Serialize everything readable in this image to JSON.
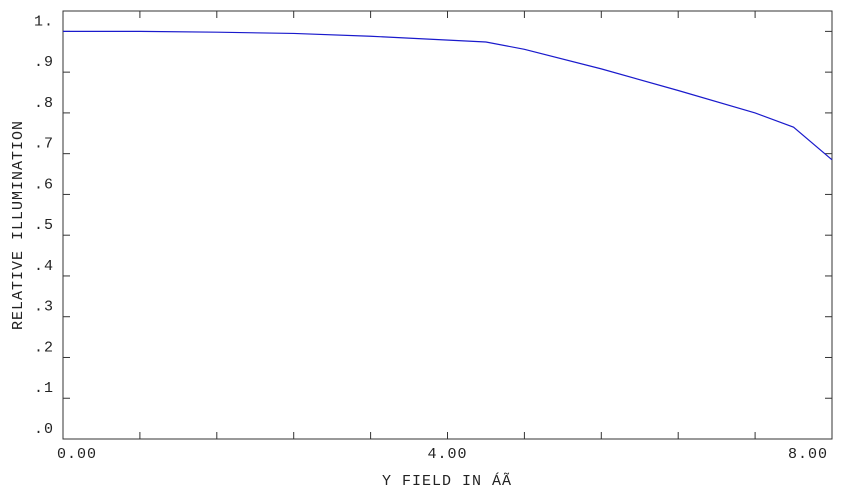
{
  "chart_data": {
    "type": "line",
    "xlabel": "Y FIELD IN  ÁÃ",
    "ylabel": "RELATIVE ILLUMINATION",
    "x": [
      0,
      0.8,
      1.6,
      2.4,
      3.2,
      4.4,
      4.8,
      5.6,
      6.4,
      7.2,
      7.6,
      8.0
    ],
    "series": [
      {
        "color": "#1a1acc",
        "values": [
          1.0,
          1.0,
          0.998,
          0.995,
          0.988,
          0.974,
          0.956,
          0.908,
          0.855,
          0.8,
          0.765,
          0.685
        ]
      }
    ],
    "xlim": [
      0,
      8
    ],
    "xticks": [
      {
        "value": 0,
        "label": "0.00"
      },
      {
        "value": 4,
        "label": "4.00"
      },
      {
        "value": 8,
        "label": "8.00"
      }
    ],
    "xminorticks": [
      0.8,
      1.6,
      2.4,
      3.2,
      4.8,
      5.6,
      6.4,
      7.2
    ],
    "ylim": [
      0,
      1.05
    ],
    "yticks": [
      {
        "value": 0,
        "label": ".0"
      },
      {
        "value": 0.1,
        "label": ".1"
      },
      {
        "value": 0.2,
        "label": ".2"
      },
      {
        "value": 0.3,
        "label": ".3"
      },
      {
        "value": 0.4,
        "label": ".4"
      },
      {
        "value": 0.5,
        "label": ".5"
      },
      {
        "value": 0.6,
        "label": ".6"
      },
      {
        "value": 0.7,
        "label": ".7"
      },
      {
        "value": 0.8,
        "label": ".8"
      },
      {
        "value": 0.9,
        "label": ".9"
      },
      {
        "value": 1.0,
        "label": "1."
      }
    ]
  }
}
